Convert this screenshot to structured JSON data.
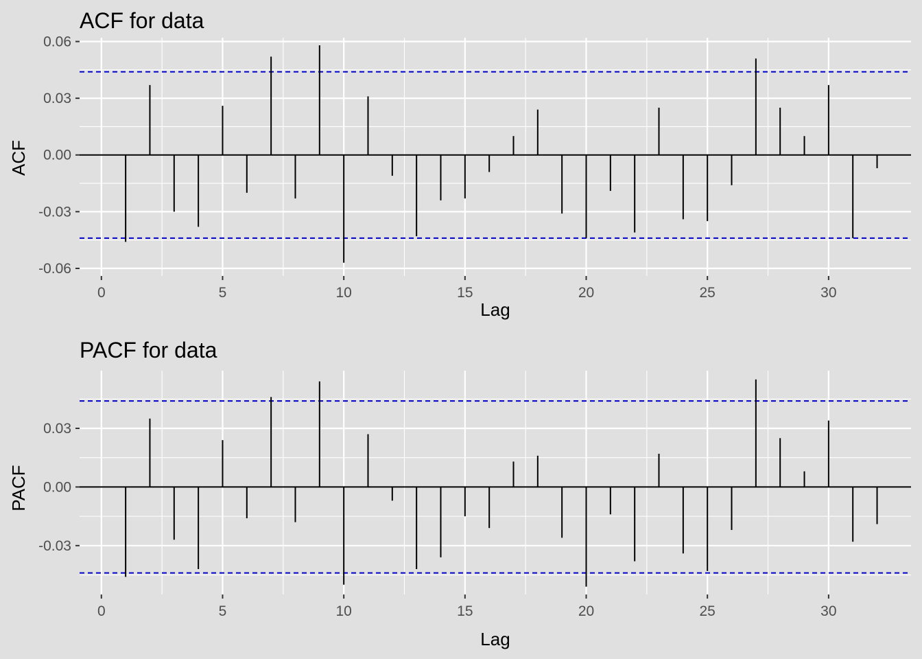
{
  "colors": {
    "background": "#e0e0e0",
    "panel": "#e0e0e0",
    "grid": "#ffffff",
    "bar": "#000000",
    "confidence_band": "#0000cc"
  },
  "chart_data": [
    {
      "type": "bar",
      "subtype": "correlogram",
      "title": "ACF for data",
      "xlabel": "Lag",
      "ylabel": "ACF",
      "xlim": [
        -0.9,
        33.4
      ],
      "ylim": [
        -0.064,
        0.062
      ],
      "xticks": [
        0,
        5,
        10,
        15,
        20,
        25,
        30
      ],
      "xtick_labels": [
        "0",
        "5",
        "10",
        "15",
        "20",
        "25",
        "30"
      ],
      "yticks": [
        -0.06,
        -0.03,
        0.0,
        0.03,
        0.06
      ],
      "ytick_labels": [
        "-0.06",
        "-0.03",
        "0.00",
        "0.03",
        "0.06"
      ],
      "grid": true,
      "confidence_band": [
        -0.044,
        0.044
      ],
      "x": [
        1,
        2,
        3,
        4,
        5,
        6,
        7,
        8,
        9,
        10,
        11,
        12,
        13,
        14,
        15,
        16,
        17,
        18,
        19,
        20,
        21,
        22,
        23,
        24,
        25,
        26,
        27,
        28,
        29,
        30,
        31,
        32
      ],
      "values": [
        -0.046,
        0.037,
        -0.03,
        -0.038,
        0.026,
        -0.02,
        0.052,
        -0.023,
        0.058,
        -0.057,
        0.031,
        -0.011,
        -0.043,
        -0.024,
        -0.023,
        -0.009,
        0.01,
        0.024,
        -0.031,
        -0.044,
        -0.019,
        -0.041,
        0.025,
        -0.034,
        -0.035,
        -0.016,
        0.051,
        0.025,
        0.01,
        0.037,
        -0.044,
        -0.007
      ]
    },
    {
      "type": "bar",
      "subtype": "correlogram",
      "title": "PACF for data",
      "xlabel": "Lag",
      "ylabel": "PACF",
      "xlim": [
        -0.9,
        33.4
      ],
      "ylim": [
        -0.055,
        0.0595
      ],
      "xticks": [
        0,
        5,
        10,
        15,
        20,
        25,
        30
      ],
      "xtick_labels": [
        "0",
        "5",
        "10",
        "15",
        "20",
        "25",
        "30"
      ],
      "yticks": [
        -0.03,
        0.0,
        0.03
      ],
      "ytick_labels": [
        "-0.03",
        "0.00",
        "0.03"
      ],
      "grid": true,
      "confidence_band": [
        -0.044,
        0.044
      ],
      "x": [
        1,
        2,
        3,
        4,
        5,
        6,
        7,
        8,
        9,
        10,
        11,
        12,
        13,
        14,
        15,
        16,
        17,
        18,
        19,
        20,
        21,
        22,
        23,
        24,
        25,
        26,
        27,
        28,
        29,
        30,
        31,
        32
      ],
      "values": [
        -0.046,
        0.035,
        -0.027,
        -0.042,
        0.024,
        -0.016,
        0.046,
        -0.018,
        0.054,
        -0.05,
        0.027,
        -0.007,
        -0.042,
        -0.036,
        -0.015,
        -0.021,
        0.013,
        0.016,
        -0.026,
        -0.051,
        -0.014,
        -0.038,
        0.017,
        -0.034,
        -0.043,
        -0.022,
        0.055,
        0.025,
        0.008,
        0.034,
        -0.028,
        -0.019
      ]
    }
  ]
}
